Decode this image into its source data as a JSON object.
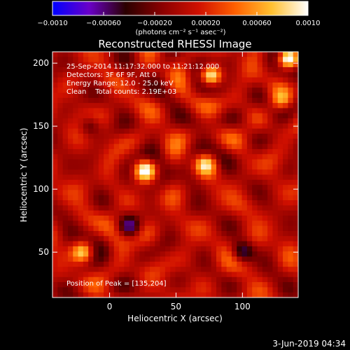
{
  "chart_data": {
    "type": "heatmap",
    "title": "Reconstructed RHESSI Image",
    "colorbar": {
      "min": -0.001,
      "max": 0.001,
      "ticks": [
        "−0.0010",
        "−0.00060",
        "−0.00020",
        "0.00020",
        "0.00060",
        "0.0010"
      ],
      "tick_values": [
        -0.001,
        -0.0006,
        -0.0002,
        0.0002,
        0.0006,
        0.001
      ],
      "unit_label": "(photons cm⁻² s⁻¹ asec⁻²)",
      "colors": [
        "#0000ff",
        "#6a00c8",
        "#2a0000",
        "#8a0000",
        "#d01000",
        "#ff6000",
        "#ffc030",
        "#ffffff"
      ]
    },
    "xlabel": "Heliocentric X (arcsec)",
    "ylabel": "Heliocentric Y (arcsec)",
    "xlim": [
      -43,
      142
    ],
    "ylim": [
      14,
      209
    ],
    "xticks": [
      0,
      50,
      100
    ],
    "yticks": [
      50,
      100,
      150,
      200
    ],
    "annotations": [
      "25-Sep-2014 11:17:32.000 to 11:21:12.000",
      "Detectors: 3F 6F 9F, Att 0",
      "Energy Range: 12.0 - 25.0 keV",
      "Clean    Total counts: 2.19E+03"
    ],
    "peak_label": "Position of Peak = [135,204]",
    "peak": [
      135,
      204
    ],
    "sources": [
      {
        "x": 135,
        "y": 204,
        "value": 0.001
      },
      {
        "x": 76,
        "y": 190,
        "value": 0.0008
      },
      {
        "x": 27,
        "y": 115,
        "value": 0.0007
      },
      {
        "x": 72,
        "y": 120,
        "value": 0.0005
      },
      {
        "x": -20,
        "y": 50,
        "value": 0.0005
      },
      {
        "x": 130,
        "y": 170,
        "value": 0.0004
      }
    ],
    "negative_sources": [
      {
        "x": 15,
        "y": 70,
        "value": -0.0004
      },
      {
        "x": 100,
        "y": 50,
        "value": -0.0004
      },
      {
        "x": -15,
        "y": 150,
        "value": -0.0003
      }
    ]
  },
  "footer": {
    "date": "3-Jun-2019 04:34"
  }
}
